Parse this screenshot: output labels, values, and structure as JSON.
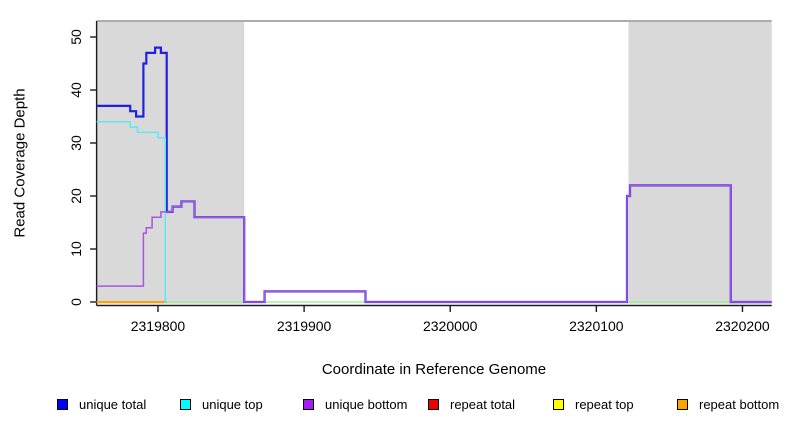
{
  "chart_data": {
    "type": "line",
    "subtype": "step-coverage",
    "title": "",
    "xlabel": "Coordinate in Reference Genome",
    "ylabel": "Read Coverage Depth",
    "xlim": [
      2319758,
      2320220
    ],
    "ylim": [
      0,
      53
    ],
    "x_ticks": [
      "2319800",
      "2319900",
      "2320000",
      "2320100",
      "2320200"
    ],
    "x_tick_values": [
      2319800,
      2319900,
      2320000,
      2320100,
      2320200
    ],
    "y_ticks": [
      "0",
      "10",
      "20",
      "30",
      "40",
      "50"
    ],
    "y_tick_values": [
      0,
      10,
      20,
      30,
      40,
      50
    ],
    "grid": false,
    "legend_position": "bottom",
    "highlight_regions": [
      {
        "name": "left-shaded-region",
        "x0": 2319758,
        "x1": 2319859,
        "color": "#d9d9d9"
      },
      {
        "name": "right-shaded-region",
        "x0": 2320122,
        "x1": 2320220,
        "color": "#d9d9d9"
      }
    ],
    "series": [
      {
        "name": "baseline-zero",
        "color": "#90ee90",
        "width": 1.3,
        "steps": [
          [
            2319805,
            0
          ],
          [
            2320220,
            0
          ]
        ]
      },
      {
        "name": "repeat bottom",
        "color": "#ffa500",
        "width": 2,
        "steps": [
          [
            2319758,
            0
          ],
          [
            2319806,
            0
          ]
        ]
      },
      {
        "name": "unique total",
        "color": "#2121dd",
        "width": 2.2,
        "steps": [
          [
            2319758,
            37
          ],
          [
            2319781,
            36
          ],
          [
            2319785,
            35
          ],
          [
            2319790,
            45
          ],
          [
            2319792,
            47
          ],
          [
            2319798,
            48
          ],
          [
            2319802,
            47
          ],
          [
            2319806,
            17
          ],
          [
            2319810,
            18
          ],
          [
            2319816,
            19
          ],
          [
            2319825,
            16
          ],
          [
            2319859,
            0
          ],
          [
            2319873,
            2
          ],
          [
            2319942,
            0
          ],
          [
            2320121,
            20
          ],
          [
            2320123,
            22
          ],
          [
            2320192,
            0
          ],
          [
            2320220,
            0
          ]
        ]
      },
      {
        "name": "unique top",
        "color": "#5ee8f2",
        "width": 1.5,
        "steps": [
          [
            2319758,
            34
          ],
          [
            2319781,
            33
          ],
          [
            2319786,
            32
          ],
          [
            2319800,
            31
          ],
          [
            2319805,
            0
          ],
          [
            2319806,
            0
          ]
        ]
      },
      {
        "name": "unique bottom",
        "color": "#a855e0",
        "width": 1.5,
        "steps": [
          [
            2319758,
            3
          ],
          [
            2319790,
            13
          ],
          [
            2319792,
            14
          ],
          [
            2319796,
            16
          ],
          [
            2319802,
            17
          ],
          [
            2319806,
            17
          ],
          [
            2319810,
            18
          ],
          [
            2319816,
            19
          ],
          [
            2319825,
            16
          ],
          [
            2319859,
            0
          ],
          [
            2319873,
            2
          ],
          [
            2319942,
            0
          ],
          [
            2320121,
            20
          ],
          [
            2320123,
            22
          ],
          [
            2320192,
            0
          ],
          [
            2320220,
            0
          ]
        ]
      }
    ],
    "legend": [
      {
        "label": "unique total",
        "color": "#0000ff"
      },
      {
        "label": "unique top",
        "color": "#00ffff"
      },
      {
        "label": "unique bottom",
        "color": "#a020f0"
      },
      {
        "label": "repeat total",
        "color": "#ee0000"
      },
      {
        "label": "repeat top",
        "color": "#ffff00"
      },
      {
        "label": "repeat bottom",
        "color": "#ffa500"
      }
    ]
  },
  "labels": {
    "x_axis": "Coordinate in Reference Genome",
    "y_axis": "Read Coverage Depth"
  }
}
